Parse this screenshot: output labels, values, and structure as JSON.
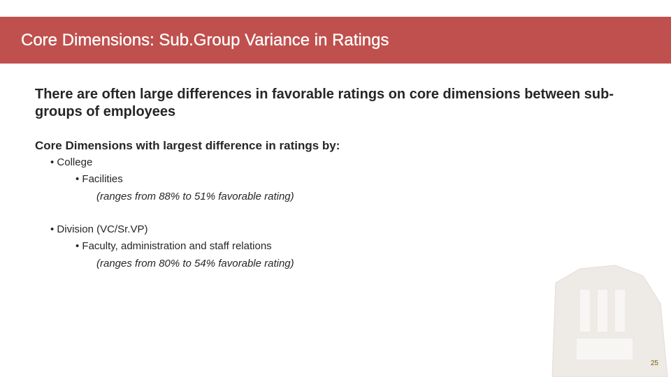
{
  "header": {
    "title": "Core Dimensions: Sub.Group Variance in Ratings"
  },
  "lead": "There are often large differences in favorable ratings on core dimensions between sub-groups of employees",
  "subheading": "Core Dimensions with largest difference in ratings by:",
  "groups": [
    {
      "label": "• College",
      "item": "•   Facilities",
      "note": "(ranges from 88% to 51% favorable rating)"
    },
    {
      "label": "• Division (VC/Sr.VP)",
      "item": "•   Faculty, administration and staff relations",
      "note": "(ranges from 80% to 54% favorable rating)"
    }
  ],
  "page_number": "25"
}
